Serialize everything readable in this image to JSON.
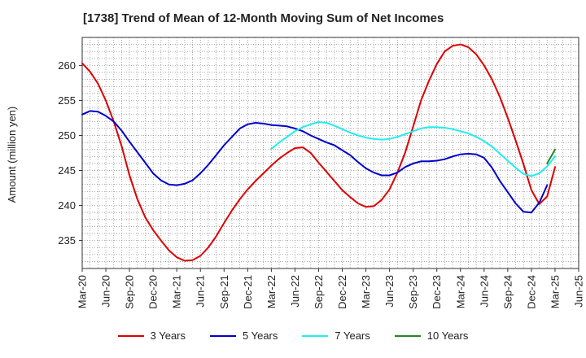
{
  "chart_data": {
    "type": "line",
    "title": "[1738]  Trend of Mean of 12-Month Moving Sum of Net Incomes",
    "xlabel": "",
    "ylabel": "Amount (million yen)",
    "x_tick_labels": [
      "Mar-20",
      "Jun-20",
      "Sep-20",
      "Dec-20",
      "Mar-21",
      "Jun-21",
      "Sep-21",
      "Dec-21",
      "Mar-22",
      "Jun-22",
      "Sep-22",
      "Dec-22",
      "Mar-23",
      "Jun-23",
      "Sep-23",
      "Dec-23",
      "Mar-24",
      "Jun-24",
      "Sep-24",
      "Dec-24",
      "Mar-25",
      "Jun-25"
    ],
    "y_ticks": [
      235,
      240,
      245,
      250,
      255,
      260
    ],
    "ylim": [
      231,
      264
    ],
    "grid": true,
    "legend_position": "bottom",
    "series": [
      {
        "name": "3 Years",
        "color": "#dd0000",
        "x": [
          "Mar-20",
          "Apr-20",
          "May-20",
          "Jun-20",
          "Jul-20",
          "Aug-20",
          "Sep-20",
          "Oct-20",
          "Nov-20",
          "Dec-20",
          "Jan-21",
          "Feb-21",
          "Mar-21",
          "Apr-21",
          "May-21",
          "Jun-21",
          "Jul-21",
          "Aug-21",
          "Sep-21",
          "Oct-21",
          "Nov-21",
          "Dec-21",
          "Jan-22",
          "Feb-22",
          "Mar-22",
          "Apr-22",
          "May-22",
          "Jun-22",
          "Jul-22",
          "Aug-22",
          "Sep-22",
          "Oct-22",
          "Nov-22",
          "Dec-22",
          "Jan-23",
          "Feb-23",
          "Mar-23",
          "Apr-23",
          "May-23",
          "Jun-23",
          "Jul-23",
          "Aug-23",
          "Sep-23",
          "Oct-23",
          "Nov-23",
          "Dec-23",
          "Jan-24",
          "Feb-24",
          "Mar-24",
          "Apr-24",
          "May-24",
          "Jun-24",
          "Jul-24",
          "Aug-24",
          "Sep-24",
          "Oct-24",
          "Nov-24",
          "Dec-24",
          "Jan-25",
          "Feb-25",
          "Mar-25"
        ],
        "values": [
          260.3,
          259.1,
          257.4,
          255.0,
          252.0,
          248.5,
          244.3,
          240.9,
          238.3,
          236.5,
          235.0,
          233.6,
          232.6,
          232.1,
          232.2,
          232.8,
          234.0,
          235.6,
          237.5,
          239.3,
          240.9,
          242.3,
          243.5,
          244.6,
          245.7,
          246.7,
          247.5,
          248.2,
          248.3,
          247.5,
          246.1,
          244.8,
          243.5,
          242.2,
          241.2,
          240.3,
          239.8,
          239.9,
          240.8,
          242.3,
          244.7,
          247.6,
          251.3,
          255.0,
          257.8,
          260.2,
          262.0,
          262.8,
          263.0,
          262.6,
          261.6,
          260.0,
          258.0,
          255.5,
          252.5,
          249.3,
          245.9,
          242.2,
          240.2,
          241.3,
          245.5
        ]
      },
      {
        "name": "5 Years",
        "color": "#0000cc",
        "x": [
          "Mar-20",
          "Apr-20",
          "May-20",
          "Jun-20",
          "Jul-20",
          "Aug-20",
          "Sep-20",
          "Oct-20",
          "Nov-20",
          "Dec-20",
          "Jan-21",
          "Feb-21",
          "Mar-21",
          "Apr-21",
          "May-21",
          "Jun-21",
          "Jul-21",
          "Aug-21",
          "Sep-21",
          "Oct-21",
          "Nov-21",
          "Dec-21",
          "Jan-22",
          "Feb-22",
          "Mar-22",
          "Apr-22",
          "May-22",
          "Jun-22",
          "Jul-22",
          "Aug-22",
          "Sep-22",
          "Oct-22",
          "Nov-22",
          "Dec-22",
          "Jan-23",
          "Feb-23",
          "Mar-23",
          "Apr-23",
          "May-23",
          "Jun-23",
          "Jul-23",
          "Aug-23",
          "Sep-23",
          "Oct-23",
          "Nov-23",
          "Dec-23",
          "Jan-24",
          "Feb-24",
          "Mar-24",
          "Apr-24",
          "May-24",
          "Jun-24",
          "Jul-24",
          "Aug-24",
          "Sep-24",
          "Oct-24",
          "Nov-24",
          "Dec-24",
          "Jan-25",
          "Feb-25",
          "Mar-25"
        ],
        "values": [
          253.0,
          253.5,
          253.4,
          252.8,
          252.0,
          250.7,
          249.1,
          247.6,
          246.1,
          244.6,
          243.6,
          243.0,
          242.9,
          243.1,
          243.6,
          244.6,
          245.8,
          247.2,
          248.6,
          249.8,
          251.0,
          251.6,
          251.8,
          251.7,
          251.5,
          251.4,
          251.3,
          251.0,
          250.6,
          250.0,
          249.5,
          249.0,
          248.6,
          247.9,
          247.2,
          246.2,
          245.3,
          244.7,
          244.3,
          244.3,
          244.7,
          245.5,
          246.0,
          246.3,
          246.3,
          246.4,
          246.6,
          247.0,
          247.3,
          247.4,
          247.3,
          246.8,
          245.4,
          243.5,
          241.9,
          240.3,
          239.1,
          239.0,
          240.4,
          242.9,
          null
        ]
      },
      {
        "name": "7 Years",
        "color": "#22eeee",
        "x": [
          "Mar-22",
          "Apr-22",
          "May-22",
          "Jun-22",
          "Jul-22",
          "Aug-22",
          "Sep-22",
          "Oct-22",
          "Nov-22",
          "Dec-22",
          "Jan-23",
          "Feb-23",
          "Mar-23",
          "Apr-23",
          "May-23",
          "Jun-23",
          "Jul-23",
          "Aug-23",
          "Sep-23",
          "Oct-23",
          "Nov-23",
          "Dec-23",
          "Jan-24",
          "Feb-24",
          "Mar-24",
          "Apr-24",
          "May-24",
          "Jun-24",
          "Jul-24",
          "Aug-24",
          "Sep-24",
          "Oct-24",
          "Nov-24",
          "Dec-24",
          "Jan-25",
          "Feb-25",
          "Mar-25"
        ],
        "values": [
          248.1,
          249.0,
          249.8,
          250.6,
          251.2,
          251.6,
          251.9,
          251.8,
          251.4,
          250.9,
          250.4,
          250.0,
          249.7,
          249.5,
          249.4,
          249.5,
          249.8,
          250.2,
          250.6,
          251.0,
          251.2,
          251.2,
          251.1,
          250.9,
          250.6,
          250.3,
          249.8,
          249.2,
          248.4,
          247.4,
          246.4,
          245.4,
          244.5,
          244.2,
          244.6,
          245.6,
          247.0
        ]
      },
      {
        "name": "10 Years",
        "color": "#228822",
        "x": [
          "Feb-25",
          "Mar-25"
        ],
        "values": [
          246.0,
          248.0
        ]
      }
    ]
  }
}
